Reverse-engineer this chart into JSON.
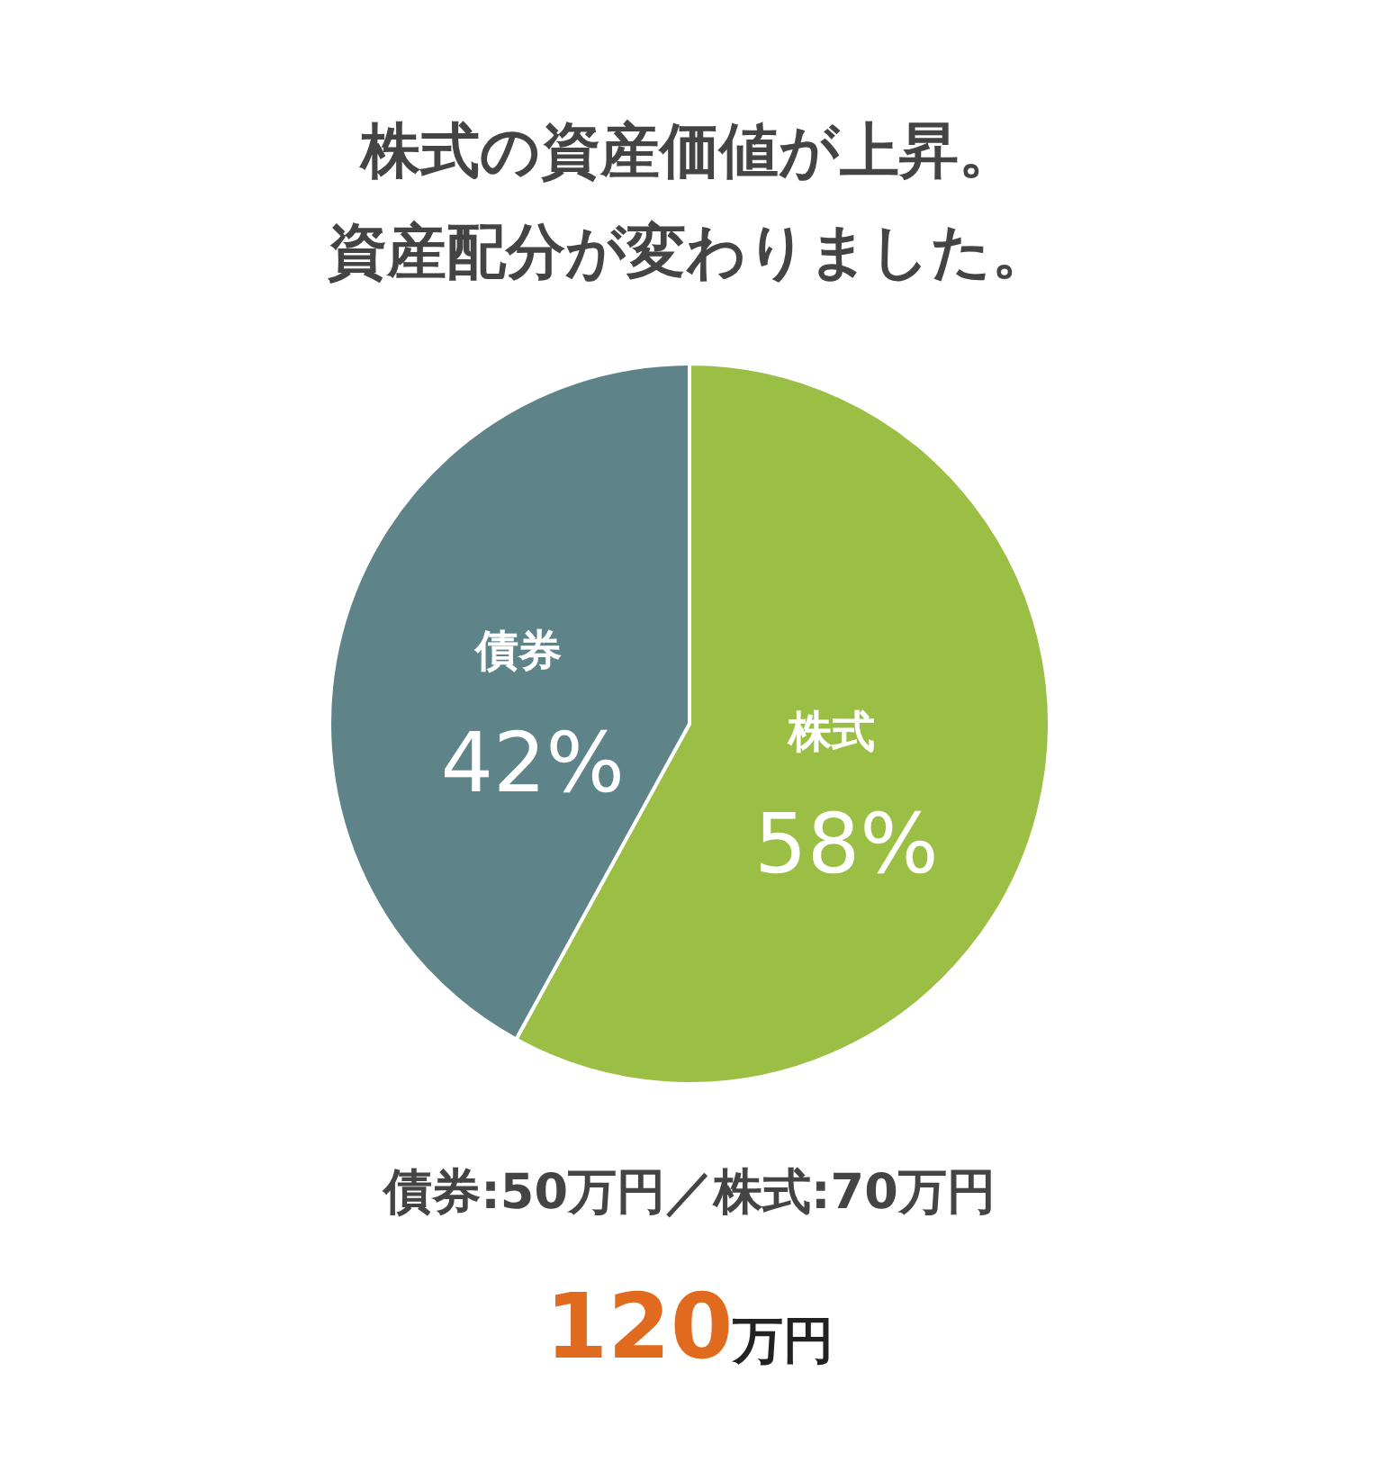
{
  "chart_data": {
    "type": "pie",
    "title": "株式の資産価値が上昇。",
    "subtitle": "資産配分が変わりました。",
    "categories": [
      "株式",
      "債券"
    ],
    "values": [
      58,
      42
    ],
    "colors": [
      "#9abf44",
      "#5e8489"
    ],
    "value_labels": [
      "58%",
      "42%"
    ],
    "annotations": [
      "債券:50万円／株式:70万円",
      "120万円"
    ]
  }
}
